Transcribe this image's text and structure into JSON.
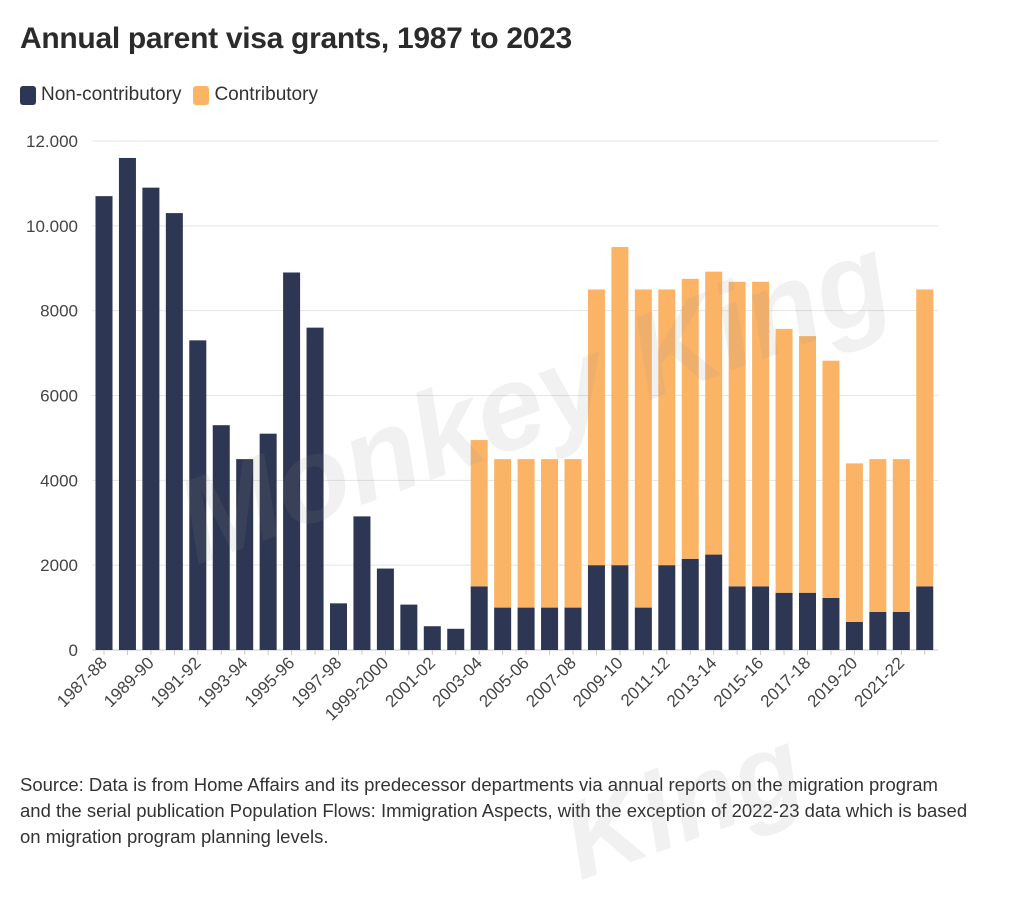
{
  "chart_data": {
    "type": "bar",
    "stacked": true,
    "title": "Annual parent visa grants, 1987 to 2023",
    "source": "Source: Data is from Home Affairs and its predecessor departments via annual reports on the migration program and the serial publication Population Flows: Immigration Aspects, with the exception of 2022-23 data which is based on migration program planning levels.",
    "legend_position": "top-left",
    "grid": true,
    "ylim": [
      0,
      12000
    ],
    "yticks": [
      0,
      2000,
      4000,
      6000,
      8000,
      10000,
      12000
    ],
    "ytick_labels": [
      "0",
      "2000",
      "4000",
      "6000",
      "8000",
      "10.000",
      "12.000"
    ],
    "categories": [
      "1987-88",
      "1988-89",
      "1989-90",
      "1990-91",
      "1991-92",
      "1992-93",
      "1993-94",
      "1994-95",
      "1995-96",
      "1996-97",
      "1997-98",
      "1998-99",
      "1999-2000",
      "2000-01",
      "2001-02",
      "2002-03",
      "2003-04",
      "2004-05",
      "2005-06",
      "2006-07",
      "2007-08",
      "2008-09",
      "2009-10",
      "2010-11",
      "2011-12",
      "2012-13",
      "2013-14",
      "2014-15",
      "2015-16",
      "2016-17",
      "2017-18",
      "2018-19",
      "2019-20",
      "2020-21",
      "2021-22",
      "2022-23"
    ],
    "xtick_labels": [
      "1987-88",
      "1989-90",
      "1991-92",
      "1993-94",
      "1995-96",
      "1997-98",
      "1999-2000",
      "2001-02",
      "2003-04",
      "2005-06",
      "2007-08",
      "2009-10",
      "2011-12",
      "2013-14",
      "2015-16",
      "2017-18",
      "2019-20",
      "2021-22"
    ],
    "series": [
      {
        "name": "Non-contributory",
        "color": "#2d3652",
        "values": [
          10700,
          11600,
          10900,
          10300,
          7300,
          5300,
          4500,
          5100,
          8900,
          7600,
          1100,
          3150,
          1920,
          1070,
          560,
          500,
          1500,
          1000,
          1000,
          1000,
          1000,
          2000,
          2000,
          1000,
          2000,
          2150,
          2250,
          1500,
          1500,
          1350,
          1350,
          1230,
          660,
          900,
          900,
          1500
        ]
      },
      {
        "name": "Contributory",
        "color": "#fbb466",
        "values": [
          0,
          0,
          0,
          0,
          0,
          0,
          0,
          0,
          0,
          0,
          0,
          0,
          0,
          0,
          0,
          0,
          3450,
          3500,
          3500,
          3500,
          3500,
          6500,
          7500,
          7500,
          6500,
          6600,
          6670,
          7180,
          7180,
          6220,
          6050,
          5590,
          3740,
          3600,
          3600,
          7000
        ]
      }
    ]
  }
}
